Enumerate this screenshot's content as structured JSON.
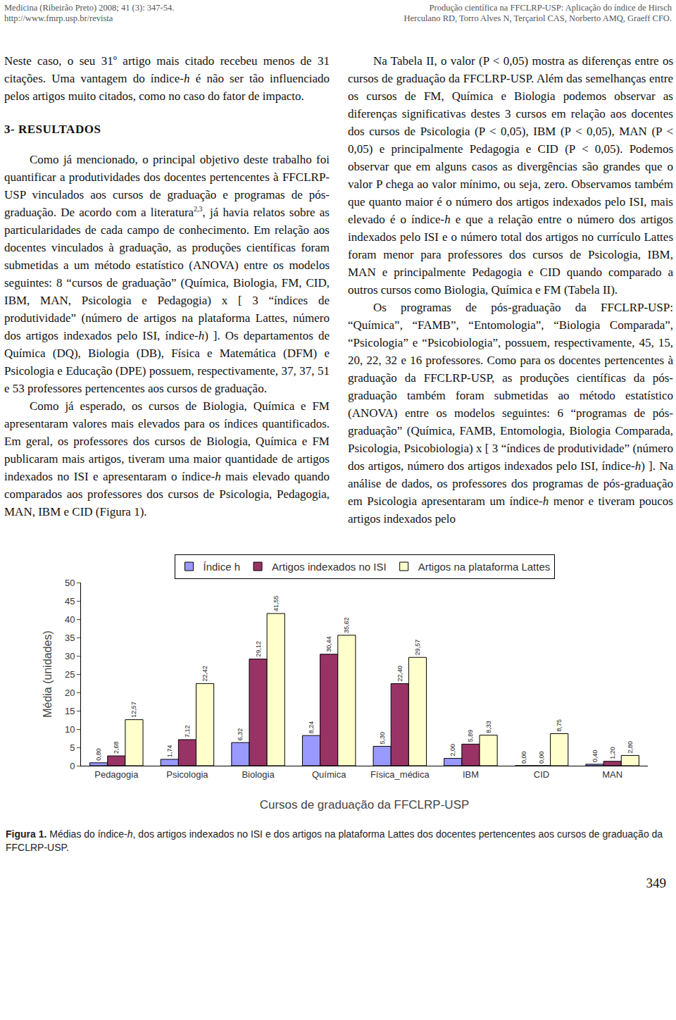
{
  "header": {
    "left": [
      "Medicina (Ribeirão Preto) 2008; 41 (3): 347-54.",
      "http://www.fmrp.usp.br/revista"
    ],
    "right": [
      "Produção científica na FFCLRP-USP: Aplicação do índice de Hirsch",
      "Herculano RD, Torro Alves N, Terçariol CAS, Norberto AMQ, Graeff CFO."
    ]
  },
  "columns": [
    [
      {
        "p": [
          "Neste caso, o seu 31º artigo mais citado recebeu menos de 31 citações. Uma vantagem do índice-",
          {
            "em": "h"
          },
          " é não ser tão influenciado pelos artigos muito citados, como no caso do fator de impacto."
        ]
      },
      {
        "heading": "3- RESULTADOS"
      },
      {
        "p": [
          "Como já mencionado, o principal objetivo deste trabalho foi quantificar a produtividades dos docentes pertencentes à FFCLRP-USP vinculados aos cursos de graduação e programas de pós-graduação. De acordo com a literatura",
          {
            "sup": "2,3"
          },
          ", já havia relatos sobre as particularidades de cada campo de conhecimento. Em relação aos docentes vinculados à graduação, as produções científicas foram submetidas a um método estatístico (ANOVA) entre os modelos seguintes: 8 “cursos de graduação” (Química, Biologia, FM, CID, IBM, MAN, Psicologia e Pedagogia) x [ 3 “índices de produtividade” (número de artigos na plataforma Lattes, número dos artigos indexados pelo ISI, índice-",
          {
            "em": "h"
          },
          ") ]. Os departamentos de Química (DQ), Biologia (DB), Física e Matemática (DFM) e Psicologia e Educação (DPE) possuem, respectivamente, 37, 37, 51 e 53 professores pertencentes aos cursos de graduação."
        ]
      },
      {
        "p": [
          "Como já esperado, os cursos de Biologia, Química e FM apresentaram valores mais elevados para os índices quantificados. Em geral, os professores dos cursos de Biologia, Química e FM publicaram mais artigos, tiveram uma maior quantidade de artigos indexados no ISI e apresentaram o índice-",
          {
            "em": "h"
          },
          " mais elevado quando comparados aos professores dos cursos de Psicologia, Pedagogia, MAN, IBM e CID (Figura 1)."
        ]
      }
    ],
    [
      {
        "p": [
          "Na Tabela II, o valor (P < 0,05) mostra as diferenças entre os cursos de graduação da FFCLRP-USP. Além das semelhanças entre os cursos de FM, Química e Biologia podemos observar as diferenças significativas destes 3 cursos em relação aos docentes dos cursos de Psicologia (P < 0,05), IBM (P < 0,05), MAN (P < 0,05) e principalmente Pedagogia e CID (P < 0,05). Podemos observar que em alguns casos as divergências são grandes que o valor P chega ao valor mínimo, ou seja, zero. Observamos também que quanto maior é o número dos artigos indexados pelo ISI, mais elevado é o índice-",
          {
            "em": "h"
          },
          " e que a relação entre o número dos artigos indexados pelo ISI e o número total dos artigos no currículo Lattes foram menor para professores dos cursos de Psicologia, IBM, MAN e principalmente Pedagogia e CID quando comparado a outros cursos como Biologia, Química e FM (Tabela II)."
        ]
      },
      {
        "p": [
          "Os programas de pós-graduação da FFCLRP-USP: “Química”, “FAMB”, “Entomologia”, “Biologia Comparada”, “Psicologia” e “Psicobiologia”, possuem, respectivamente, 45, 15, 20, 22, 32 e 16 professores. Como para os docentes pertencentes à graduação da FFCLRP-USP, as produções científicas da pós-graduação também foram submetidas ao método estatístico (ANOVA) entre os modelos seguintes: 6 “programas de pós-graduação” (Química, FAMB, Entomologia, Biologia Comparada, Psicologia, Psicobiologia) x [ 3 “índices de produtividade” (número dos artigos, número dos artigos indexados pelo ISI, índice-",
          {
            "em": "h"
          },
          ") ]. Na análise de dados, os professores dos programas de pós-graduação em Psicologia apresentaram um índice-",
          {
            "em": "h"
          },
          " menor e tiveram poucos artigos indexados pelo"
        ]
      }
    ]
  ],
  "chart_data": {
    "type": "bar",
    "x_label": "Cursos de graduação da FFCLRP-USP",
    "y_label": "Média (unidades)",
    "categories": [
      "Pedagogia",
      "Psicologia",
      "Biologia",
      "Química",
      "Física_médica",
      "IBM",
      "CID",
      "MAN"
    ],
    "series": [
      {
        "name": "Índice h",
        "color": "#9999ff",
        "values": [
          0.8,
          1.74,
          6.32,
          8.24,
          5.3,
          2.0,
          0.0,
          0.4
        ],
        "value_labels": [
          "0,80",
          "1,74",
          "6,32",
          "8,24",
          "5,30",
          "2,00",
          "0,00",
          "0,40"
        ]
      },
      {
        "name": "Artigos indexados no ISI",
        "color": "#993366",
        "values": [
          2.68,
          7.12,
          29.12,
          30.44,
          22.4,
          5.89,
          0.0,
          1.2
        ],
        "value_labels": [
          "2,68",
          "7,12",
          "29,12",
          "30,44",
          "22,40",
          "5,89",
          "0,00",
          "1,20"
        ]
      },
      {
        "name": "Artigos na plataforma Lattes",
        "color": "#ffffcc",
        "values": [
          12.57,
          22.42,
          41.55,
          35.62,
          29.57,
          8.33,
          8.75,
          2.8
        ],
        "value_labels": [
          "12,57",
          "22,42",
          "41,55",
          "35,62",
          "29,57",
          "8,33",
          "8,75",
          "2,80"
        ]
      }
    ],
    "ylim": [
      0,
      50
    ],
    "yticks": [
      0,
      5,
      10,
      15,
      20,
      25,
      30,
      35,
      40,
      45,
      50
    ],
    "grid": false,
    "legend": "top",
    "data_labels": true
  },
  "caption": [
    {
      "b": "Figura 1."
    },
    " Médias do índice-",
    {
      "em": "h"
    },
    ", dos artigos indexados no ISI e dos artigos na plataforma Lattes dos docentes pertencentes aos cursos de graduação da FFCLRP-USP."
  ],
  "page_number": "349"
}
